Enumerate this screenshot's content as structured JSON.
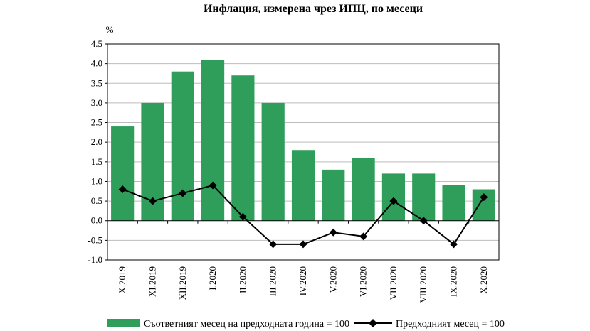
{
  "chart_data": {
    "type": "bar",
    "title": "Инфлация, измерена чрез ИПЦ, по месеци",
    "ylabel": "%",
    "xlabel": "",
    "ylim": [
      -1.0,
      4.5
    ],
    "yticks": [
      "4.5",
      "4.0",
      "3.5",
      "3.0",
      "2.5",
      "2.0",
      "1.5",
      "1.0",
      "0.5",
      "0.0",
      "-0.5",
      "-1.0"
    ],
    "grid": true,
    "legend_position": "bottom",
    "categories": [
      "X.2019",
      "XI.2019",
      "XII.2019",
      "I.2020",
      "II.2020",
      "III.2020",
      "IV.2020",
      "V.2020",
      "VI.2020",
      "VII.2020",
      "VIII.2020",
      "IX.2020",
      "X.2020"
    ],
    "series": [
      {
        "name": "Съответният месец на предходната година = 100",
        "kind": "bar",
        "color": "#2e9e5a",
        "values": [
          2.4,
          3.0,
          3.8,
          4.1,
          3.7,
          3.0,
          1.8,
          1.3,
          1.6,
          1.2,
          1.2,
          0.9,
          0.8
        ]
      },
      {
        "name": "Предходният месец = 100",
        "kind": "line",
        "color": "#000000",
        "marker": "diamond",
        "values": [
          0.8,
          0.5,
          0.7,
          0.9,
          0.1,
          -0.6,
          -0.6,
          -0.3,
          -0.4,
          0.5,
          0.0,
          -0.6,
          0.6
        ]
      }
    ]
  }
}
